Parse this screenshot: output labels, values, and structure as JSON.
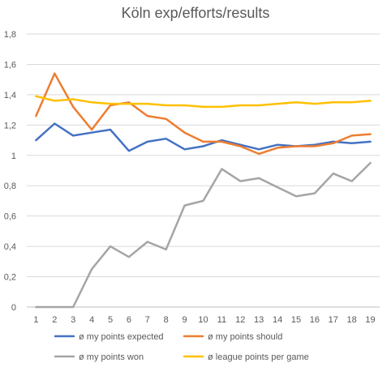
{
  "chart_data": {
    "type": "line",
    "title": "Köln exp/efforts/results",
    "xlabel": "",
    "ylabel": "",
    "categories": [
      "1",
      "2",
      "3",
      "4",
      "5",
      "6",
      "7",
      "8",
      "9",
      "10",
      "11",
      "12",
      "13",
      "14",
      "15",
      "16",
      "17",
      "18",
      "19"
    ],
    "ylim": [
      0,
      1.8
    ],
    "y_ticks": [
      "0",
      "0,2",
      "0,4",
      "0,6",
      "0,8",
      "1",
      "1,2",
      "1,4",
      "1,6",
      "1,8"
    ],
    "y_tick_values": [
      0,
      0.2,
      0.4,
      0.6,
      0.8,
      1.0,
      1.2,
      1.4,
      1.6,
      1.8
    ],
    "grid": true,
    "legend_position": "bottom",
    "series": [
      {
        "name": "ø my points expected",
        "color": "#4472c4",
        "values": [
          1.1,
          1.21,
          1.13,
          1.15,
          1.17,
          1.03,
          1.09,
          1.11,
          1.04,
          1.06,
          1.1,
          1.07,
          1.04,
          1.07,
          1.06,
          1.07,
          1.09,
          1.08,
          1.09
        ]
      },
      {
        "name": "ø my points should",
        "color": "#ed7d31",
        "values": [
          1.26,
          1.54,
          1.32,
          1.17,
          1.33,
          1.35,
          1.26,
          1.24,
          1.15,
          1.09,
          1.09,
          1.06,
          1.01,
          1.05,
          1.06,
          1.06,
          1.08,
          1.13,
          1.14
        ]
      },
      {
        "name": "ø my points won",
        "color": "#a5a5a5",
        "values": [
          0,
          0,
          0,
          0.25,
          0.4,
          0.33,
          0.43,
          0.38,
          0.67,
          0.7,
          0.91,
          0.83,
          0.85,
          0.79,
          0.73,
          0.75,
          0.88,
          0.83,
          0.95
        ]
      },
      {
        "name": "ø league points per game",
        "color": "#ffc000",
        "values": [
          1.39,
          1.36,
          1.37,
          1.35,
          1.34,
          1.34,
          1.34,
          1.33,
          1.33,
          1.32,
          1.32,
          1.33,
          1.33,
          1.34,
          1.35,
          1.34,
          1.35,
          1.35,
          1.36
        ]
      }
    ]
  }
}
